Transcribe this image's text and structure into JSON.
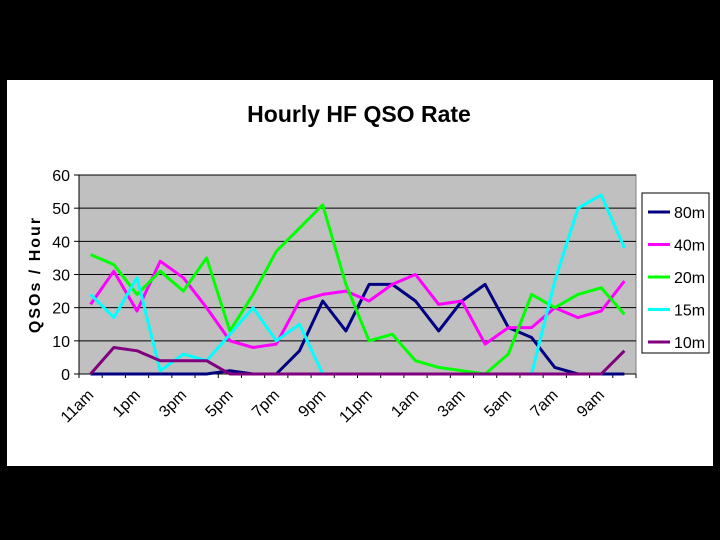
{
  "chart_data": {
    "type": "line",
    "title": "Hourly HF QSO Rate",
    "xlabel": "",
    "ylabel": "QSOs / Hour",
    "ylim": [
      0,
      60
    ],
    "yticks": [
      "0",
      "10",
      "20",
      "30",
      "40",
      "50",
      "60"
    ],
    "categories": [
      "11am",
      "12pm",
      "1pm",
      "2pm",
      "3pm",
      "4pm",
      "5pm",
      "6pm",
      "7pm",
      "8pm",
      "9pm",
      "10pm",
      "11pm",
      "12am",
      "1am",
      "2am",
      "3am",
      "4am",
      "5am",
      "6am",
      "7am",
      "8am",
      "9am",
      "10am"
    ],
    "xtick_labels": [
      "11am",
      "1pm",
      "3pm",
      "5pm",
      "7pm",
      "9pm",
      "11pm",
      "1am",
      "3am",
      "5am",
      "7am",
      "9am"
    ],
    "grid": true,
    "legend_position": "right",
    "plot_background": "#C0C0C0",
    "series": [
      {
        "name": "80m",
        "color": "#000080",
        "values": [
          0,
          0,
          0,
          0,
          0,
          0,
          1,
          0,
          0,
          7,
          22,
          13,
          27,
          27,
          22,
          13,
          22,
          27,
          14,
          11,
          2,
          0,
          0,
          0
        ]
      },
      {
        "name": "40m",
        "color": "#FF00FF",
        "values": [
          21,
          31,
          19,
          34,
          29,
          20,
          10,
          8,
          9,
          22,
          24,
          25,
          22,
          27,
          30,
          21,
          22,
          9,
          14,
          14,
          20,
          17,
          19,
          28
        ]
      },
      {
        "name": "20m",
        "color": "#00FF00",
        "values": [
          36,
          33,
          24,
          31,
          25,
          35,
          13,
          24,
          37,
          44,
          51,
          27,
          10,
          12,
          4,
          2,
          1,
          0,
          6,
          24,
          20,
          24,
          26,
          18
        ]
      },
      {
        "name": "15m",
        "color": "#00FFFF",
        "values": [
          24,
          17,
          29,
          1,
          6,
          4,
          12,
          20,
          10,
          15,
          0,
          0,
          0,
          0,
          0,
          0,
          0,
          0,
          0,
          0,
          28,
          50,
          54,
          38
        ]
      },
      {
        "name": "10m",
        "color": "#800080",
        "values": [
          0,
          8,
          7,
          4,
          4,
          4,
          0,
          0,
          0,
          0,
          0,
          0,
          0,
          0,
          0,
          0,
          0,
          0,
          0,
          0,
          0,
          0,
          0,
          7
        ]
      }
    ]
  }
}
